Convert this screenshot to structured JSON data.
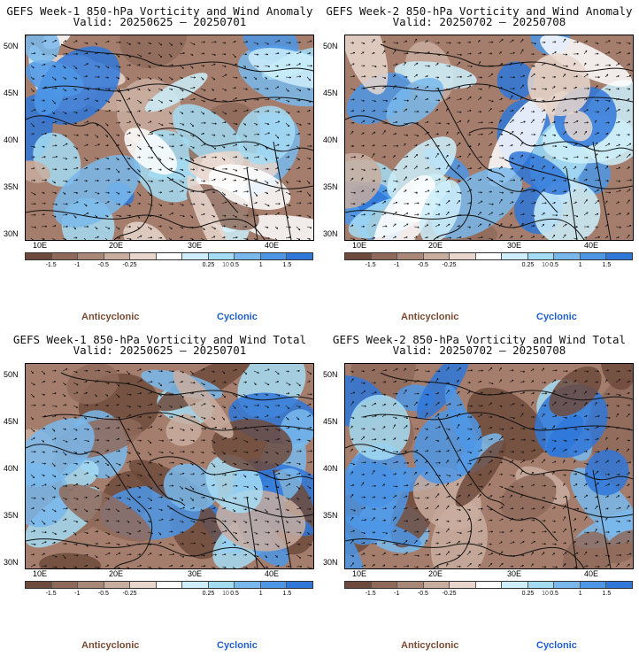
{
  "panels": [
    {
      "title": "GEFS Week-1 850-hPa Vorticity and Wind Anomaly",
      "valid": "Valid: 20250625 – 20250701"
    },
    {
      "title": "GEFS Week-2 850-hPa Vorticity and Wind Anomaly",
      "valid": "Valid: 20250702 – 20250708"
    },
    {
      "title": "GEFS Week-1 850-hPa Vorticity and Wind Total",
      "valid": "Valid: 20250625 – 20250701"
    },
    {
      "title": "GEFS Week-2 850-hPa Vorticity and Wind Total",
      "valid": "Valid: 20250702 – 20250708"
    }
  ],
  "lat_labels": [
    "50N",
    "45N",
    "40N",
    "35N",
    "30N"
  ],
  "lon_labels": [
    "10E",
    "20E",
    "30E",
    "40E"
  ],
  "colorbar": {
    "labels": [
      "-1.5",
      "-1",
      "-0.5",
      "-0.25",
      "0.25",
      "0.5",
      "1",
      "1.5"
    ],
    "scale_note": "10",
    "colors": [
      "#6e4a3c",
      "#8f6a5a",
      "#a98878",
      "#c9ad9f",
      "#e8d6cc",
      "#ffffff",
      "#cdeefa",
      "#a4dcf3",
      "#79b8ec",
      "#4e97e6",
      "#2f77d9"
    ]
  },
  "legend": {
    "anticyclonic": "Anticyclonic",
    "cyclonic": "Cyclonic"
  },
  "colors": {
    "anticyclonic_text": "#7b4a33",
    "cyclonic_text": "#1f5fc9"
  }
}
